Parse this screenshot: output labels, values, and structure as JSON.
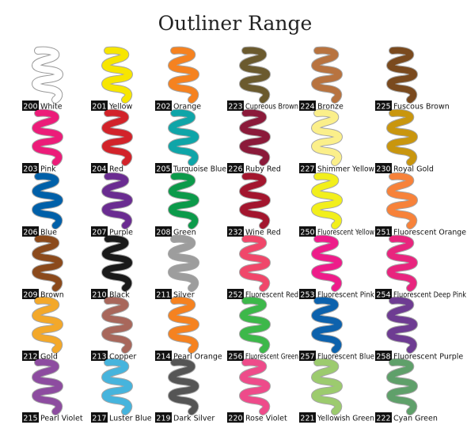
{
  "title": "Outliner Range",
  "items": [
    {
      "code": "200",
      "name": "White",
      "color": "#ffffff"
    },
    {
      "code": "201",
      "name": "Yellow",
      "color": "#f7e600"
    },
    {
      "code": "202",
      "name": "Orange",
      "color": "#f58220"
    },
    {
      "code": "223",
      "name": "Cupreous Brown",
      "color": "#6b5a2e"
    },
    {
      "code": "224",
      "name": "Bronze",
      "color": "#b8733f"
    },
    {
      "code": "225",
      "name": "Fuscous Brown",
      "color": "#7a4a1e"
    },
    {
      "code": "203",
      "name": "Pink",
      "color": "#ec1c79"
    },
    {
      "code": "204",
      "name": "Red",
      "color": "#d2232a"
    },
    {
      "code": "205",
      "name": "Turquoise Blue",
      "color": "#0fa5a8"
    },
    {
      "code": "226",
      "name": "Ruby Red",
      "color": "#8b1a3a"
    },
    {
      "code": "227",
      "name": "Shimmer Yellow",
      "color": "#fbef8a"
    },
    {
      "code": "230",
      "name": "Royal Gold",
      "color": "#c9960e"
    },
    {
      "code": "206",
      "name": "Blue",
      "color": "#0060a9"
    },
    {
      "code": "207",
      "name": "Purple",
      "color": "#6a2c91"
    },
    {
      "code": "208",
      "name": "Green",
      "color": "#0c9a4a"
    },
    {
      "code": "232",
      "name": "Wine Red",
      "color": "#a3162e"
    },
    {
      "code": "250",
      "name": "Fluorescent Yellow",
      "color": "#f2ef1b"
    },
    {
      "code": "251",
      "name": "Fluorescent Orange",
      "color": "#f7823a"
    },
    {
      "code": "209",
      "name": "Brown",
      "color": "#8b4a1c"
    },
    {
      "code": "210",
      "name": "Black",
      "color": "#1a1a1a"
    },
    {
      "code": "211",
      "name": "Silver",
      "color": "#9d9d9d"
    },
    {
      "code": "252",
      "name": "Fluorescent Red",
      "color": "#f0476a"
    },
    {
      "code": "253",
      "name": "Fluorescent Pink",
      "color": "#ee1c8a"
    },
    {
      "code": "254",
      "name": "Fluorescent Deep Pink",
      "color": "#e8257e"
    },
    {
      "code": "212",
      "name": "Gold",
      "color": "#f3a82a"
    },
    {
      "code": "213",
      "name": "Copper",
      "color": "#a8675b"
    },
    {
      "code": "214",
      "name": "Pearl Orange",
      "color": "#f58220"
    },
    {
      "code": "256",
      "name": "Fluorescent Green",
      "color": "#3db84a"
    },
    {
      "code": "257",
      "name": "Fluorescent Blue",
      "color": "#0d62ad"
    },
    {
      "code": "258",
      "name": "Fluorescent Purple",
      "color": "#6e3c92"
    },
    {
      "code": "215",
      "name": "Pearl Violet",
      "color": "#8d4ca0"
    },
    {
      "code": "217",
      "name": "Luster Blue",
      "color": "#46b4dd"
    },
    {
      "code": "219",
      "name": "Dark Silver",
      "color": "#555555"
    },
    {
      "code": "220",
      "name": "Rose Violet",
      "color": "#ee4b8a"
    },
    {
      "code": "221",
      "name": "Yellowish Green",
      "color": "#9ccb6e"
    },
    {
      "code": "222",
      "name": "Cyan Green",
      "color": "#5fa06a"
    }
  ]
}
